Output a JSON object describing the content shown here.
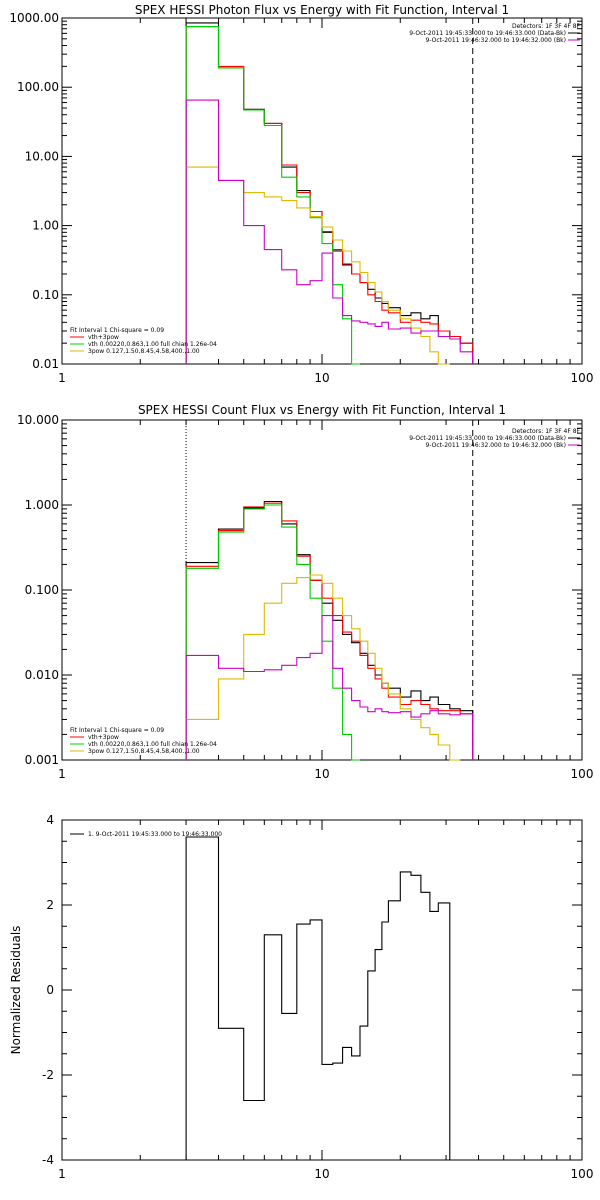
{
  "chart_data": [
    {
      "type": "line",
      "title": "SPEX HESSI Photon Flux vs Energy with Fit Function, Interval 1",
      "xscale": "log",
      "yscale": "log",
      "xlim": [
        1,
        100
      ],
      "ylim": [
        0.01,
        1000
      ],
      "x_ticks": [
        "1",
        "10",
        "100"
      ],
      "y_ticks": [
        "0.01",
        "0.10",
        "1.00",
        "10.00",
        "100.00",
        "1000.00"
      ],
      "threshold_lines": {
        "dotted_x": 3.0,
        "dashed_x": 38.0
      },
      "info_text": {
        "detectors": "Detectors: 1F 3F 4F 8F",
        "times": [
          {
            "text": "9-Oct-2011 19:45:33.000 to 19:46:33.000 (Data-Bk)",
            "color": "#000000"
          },
          {
            "text": "9-Oct-2011 19:46:32.000 to 19:46:32.000 (Bk)",
            "color": "#cc00cc"
          }
        ]
      },
      "legend": {
        "header": "Fit Interval 1   Chi-square = 0.09",
        "entries": [
          {
            "name": "vth+3pow",
            "color": "#ff0000"
          },
          {
            "name": "vth 0.00220,0.863,1.00  full chian 1.26e-04",
            "color": "#00cc00"
          },
          {
            "name": "3pow 0.127,1.50,8.45,4.58,400.,1.00",
            "color": "#ddbb00"
          }
        ]
      },
      "bin_edges": [
        3.0,
        4.0,
        5.0,
        6.0,
        7.0,
        8.0,
        9.0,
        10.0,
        11.0,
        12.0,
        13.0,
        14.0,
        15.0,
        16.0,
        17.0,
        18.0,
        20.0,
        22.0,
        24.0,
        26.0,
        28.0,
        31.0,
        34.0,
        38.0
      ],
      "series": [
        {
          "color": "#000000",
          "values": [
            850,
            190,
            48,
            30,
            7.0,
            3.2,
            1.6,
            0.8,
            0.43,
            0.27,
            0.2,
            0.15,
            0.12,
            0.09,
            0.075,
            0.065,
            0.05,
            0.055,
            0.045,
            0.05,
            0.03,
            0.025,
            0.02
          ]
        },
        {
          "color": "#ff0000",
          "values": [
            750,
            200,
            47,
            30,
            7.5,
            3.0,
            1.6,
            0.82,
            0.45,
            0.28,
            0.2,
            0.15,
            0.1,
            0.08,
            0.06,
            0.055,
            0.04,
            0.043,
            0.04,
            0.038,
            0.03,
            0.025,
            0.02
          ]
        },
        {
          "color": "#00cc00",
          "values": [
            750,
            190,
            47,
            28,
            5.0,
            2.6,
            1.3,
            0.55,
            0.14,
            0.045,
            0.01
          ]
        },
        {
          "color": "#ddbb00",
          "values": [
            7.0,
            4.5,
            3.0,
            2.6,
            2.3,
            1.8,
            1.35,
            0.95,
            0.62,
            0.43,
            0.3,
            0.21,
            0.15,
            0.11,
            0.08,
            0.06,
            0.045,
            0.033,
            0.025,
            0.015,
            0.01
          ]
        },
        {
          "color": "#cc00cc",
          "values": [
            65,
            4.5,
            1.0,
            0.45,
            0.23,
            0.14,
            0.16,
            0.4,
            0.09,
            0.05,
            0.042,
            0.04,
            0.038,
            0.035,
            0.04,
            0.032,
            0.033,
            0.028,
            0.03,
            0.03,
            0.025,
            0.023,
            0.015
          ]
        }
      ]
    },
    {
      "type": "line",
      "title": "SPEX HESSI Count Flux vs Energy with Fit Function, Interval 1",
      "xscale": "log",
      "yscale": "log",
      "xlim": [
        1,
        100
      ],
      "ylim": [
        0.001,
        10
      ],
      "x_ticks": [
        "1",
        "10",
        "100"
      ],
      "y_ticks": [
        "0.001",
        "0.010",
        "0.100",
        "1.000",
        "10.000"
      ],
      "threshold_lines": {
        "dotted_x": 3.0,
        "dashed_x": 38.0
      },
      "info_text": {
        "detectors": "Detectors: 1F 3F 4F 8F",
        "times": [
          {
            "text": "9-Oct-2011 19:45:33.000 to 19:46:33.000 (Data-Bk)",
            "color": "#000000"
          },
          {
            "text": "9-Oct-2011 19:46:32.000 to 19:46:32.000 (Bk)",
            "color": "#cc00cc"
          }
        ]
      },
      "legend": {
        "header": "Fit Interval 1   Chi-square = 0.09",
        "entries": [
          {
            "name": "vth+3pow",
            "color": "#ff0000"
          },
          {
            "name": "vth 0.00220,0.863,1.00  full chian 1.26e-04",
            "color": "#00cc00"
          },
          {
            "name": "3pow 0.127,1.50,8.45,4.58,400.,1.00",
            "color": "#ddbb00"
          }
        ]
      },
      "bin_edges": [
        3.0,
        4.0,
        5.0,
        6.0,
        7.0,
        8.0,
        9.0,
        10.0,
        11.0,
        12.0,
        13.0,
        14.0,
        15.0,
        16.0,
        17.0,
        18.0,
        20.0,
        22.0,
        24.0,
        26.0,
        28.0,
        31.0,
        34.0,
        38.0
      ],
      "series": [
        {
          "color": "#000000",
          "values": [
            0.21,
            0.52,
            0.92,
            1.1,
            0.6,
            0.26,
            0.13,
            0.07,
            0.044,
            0.03,
            0.024,
            0.018,
            0.013,
            0.01,
            0.008,
            0.007,
            0.0055,
            0.0065,
            0.005,
            0.0055,
            0.0045,
            0.004,
            0.0038
          ]
        },
        {
          "color": "#ff0000",
          "values": [
            0.19,
            0.5,
            0.95,
            1.05,
            0.65,
            0.25,
            0.13,
            0.08,
            0.05,
            0.032,
            0.025,
            0.017,
            0.012,
            0.009,
            0.007,
            0.0055,
            0.0045,
            0.005,
            0.0045,
            0.004,
            0.0038,
            0.0038,
            0.0035
          ]
        },
        {
          "color": "#00cc00",
          "values": [
            0.18,
            0.48,
            0.9,
            1.0,
            0.55,
            0.2,
            0.08,
            0.025,
            0.007,
            0.002,
            0.001
          ]
        },
        {
          "color": "#ddbb00",
          "values": [
            0.003,
            0.009,
            0.03,
            0.07,
            0.12,
            0.14,
            0.15,
            0.12,
            0.08,
            0.05,
            0.035,
            0.025,
            0.018,
            0.012,
            0.008,
            0.006,
            0.004,
            0.003,
            0.0024,
            0.002,
            0.0015,
            0.001
          ]
        },
        {
          "color": "#cc00cc",
          "values": [
            0.017,
            0.012,
            0.011,
            0.0115,
            0.013,
            0.016,
            0.018,
            0.05,
            0.012,
            0.007,
            0.005,
            0.0042,
            0.0037,
            0.004,
            0.0037,
            0.0036,
            0.0037,
            0.0032,
            0.0035,
            0.0038,
            0.0035,
            0.0034,
            0.0035
          ]
        }
      ]
    },
    {
      "type": "line",
      "title": "",
      "ylabel": "Normalized Residuals",
      "xscale": "log",
      "yscale": "linear",
      "xlim": [
        1,
        100
      ],
      "ylim": [
        -4,
        4
      ],
      "x_ticks": [
        "1",
        "10",
        "100"
      ],
      "y_ticks": [
        "-4",
        "-2",
        "0",
        "2",
        "4"
      ],
      "legend": {
        "entries": [
          {
            "name": "1.  9-Oct-2011 19:45:33.000 to 19:46:33.000",
            "color": "#000000"
          }
        ]
      },
      "bin_edges": [
        3.0,
        4.0,
        5.0,
        6.0,
        7.0,
        8.0,
        9.0,
        10.0,
        11.0,
        12.0,
        13.0,
        14.0,
        15.0,
        16.0,
        17.0,
        18.0,
        20.0,
        22.0,
        24.0,
        26.0,
        28.0,
        31.0,
        34.0,
        38.0
      ],
      "series": [
        {
          "color": "#000000",
          "values": [
            3.6,
            -0.9,
            -2.6,
            1.3,
            -0.55,
            1.55,
            1.65,
            -1.75,
            -1.72,
            -1.35,
            -1.55,
            -0.85,
            0.45,
            0.95,
            1.6,
            2.1,
            2.78,
            2.7,
            2.3,
            1.85,
            2.05
          ]
        }
      ]
    }
  ]
}
